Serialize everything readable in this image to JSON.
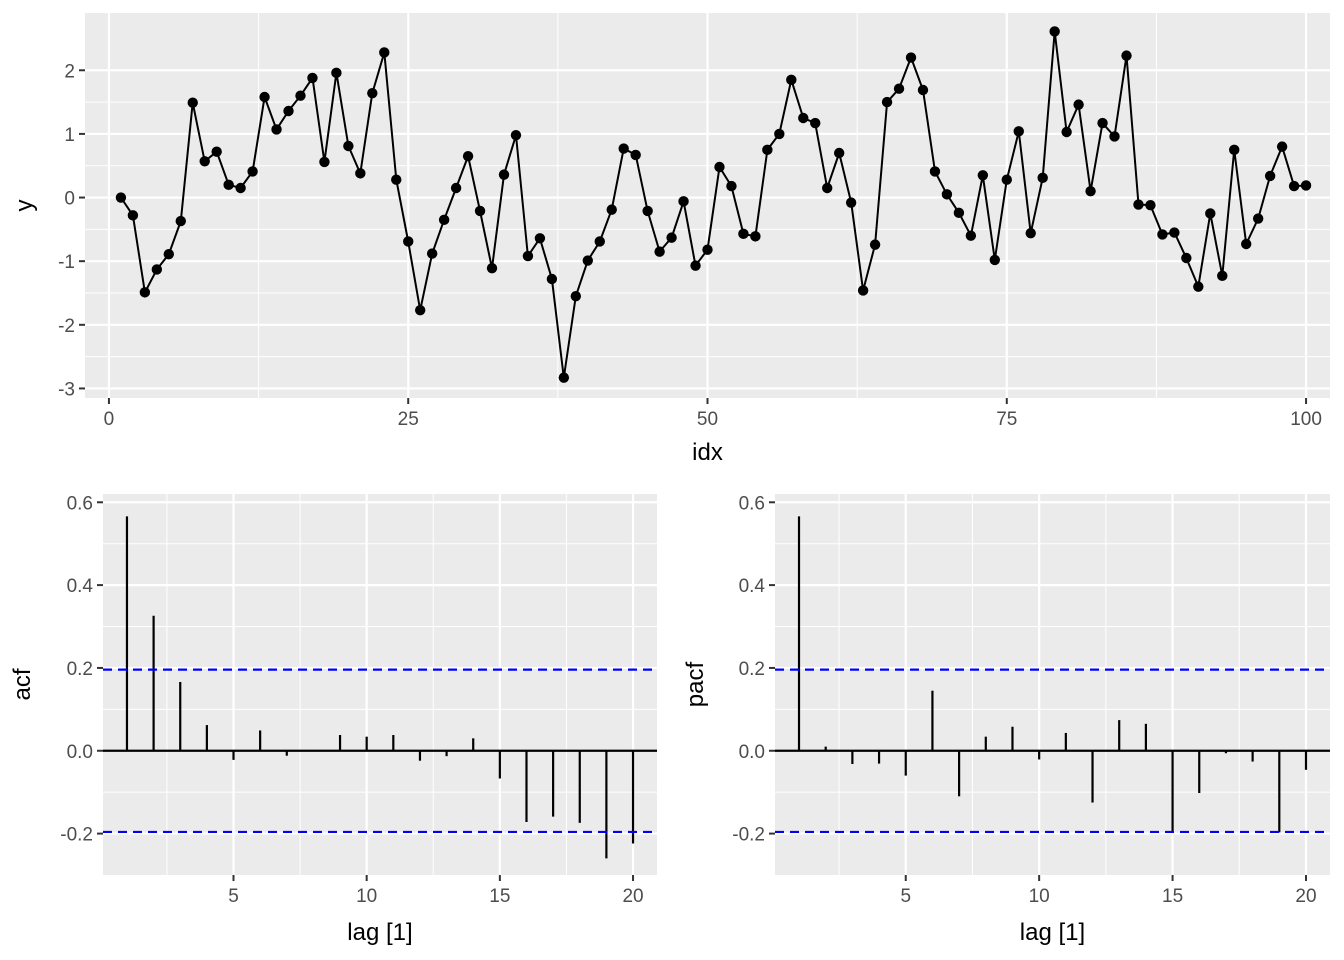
{
  "chart_data": [
    {
      "type": "line",
      "xlabel": "idx",
      "ylabel": "y",
      "xlim": [
        -2,
        102
      ],
      "ylim": [
        -3.15,
        2.9
      ],
      "xticks": [
        0,
        25,
        50,
        75,
        100
      ],
      "yticks": [
        -3,
        -2,
        -1,
        0,
        1,
        2
      ],
      "grid": true,
      "markers": true,
      "colors": {
        "line": "#000000",
        "panel": "#ebebeb",
        "grid": "#ffffff"
      },
      "x": [
        1,
        2,
        3,
        4,
        5,
        6,
        7,
        8,
        9,
        10,
        11,
        12,
        13,
        14,
        15,
        16,
        17,
        18,
        19,
        20,
        21,
        22,
        23,
        24,
        25,
        26,
        27,
        28,
        29,
        30,
        31,
        32,
        33,
        34,
        35,
        36,
        37,
        38,
        39,
        40,
        41,
        42,
        43,
        44,
        45,
        46,
        47,
        48,
        49,
        50,
        51,
        52,
        53,
        54,
        55,
        56,
        57,
        58,
        59,
        60,
        61,
        62,
        63,
        64,
        65,
        66,
        67,
        68,
        69,
        70,
        71,
        72,
        73,
        74,
        75,
        76,
        77,
        78,
        79,
        80,
        81,
        82,
        83,
        84,
        85,
        86,
        87,
        88,
        89,
        90,
        91,
        92,
        93,
        94,
        95,
        96,
        97,
        98,
        99,
        100
      ],
      "y": [
        0.0,
        -0.28,
        -1.49,
        -1.13,
        -0.89,
        -0.37,
        1.49,
        0.57,
        0.72,
        0.2,
        0.15,
        0.41,
        1.58,
        1.07,
        1.36,
        1.6,
        1.88,
        0.56,
        1.96,
        0.81,
        0.38,
        1.64,
        2.28,
        0.28,
        -0.69,
        -1.77,
        -0.88,
        -0.35,
        0.15,
        0.65,
        -0.21,
        -1.11,
        0.36,
        0.98,
        -0.92,
        -0.64,
        -1.28,
        -2.83,
        -1.55,
        -0.99,
        -0.69,
        -0.19,
        0.77,
        0.67,
        -0.21,
        -0.85,
        -0.63,
        -0.06,
        -1.07,
        -0.82,
        0.48,
        0.18,
        -0.57,
        -0.61,
        0.75,
        1.0,
        1.85,
        1.25,
        1.17,
        0.15,
        0.7,
        -0.08,
        -1.46,
        -0.74,
        1.5,
        1.71,
        2.2,
        1.69,
        0.41,
        0.05,
        -0.24,
        -0.6,
        0.35,
        -0.98,
        0.28,
        1.04,
        -0.56,
        0.31,
        2.61,
        1.03,
        1.46,
        0.1,
        1.17,
        0.96,
        2.23,
        -0.11,
        -0.12,
        -0.58,
        -0.55,
        -0.95,
        -1.4,
        -0.25,
        -1.23,
        0.75,
        -0.73,
        -0.33,
        0.34,
        0.8,
        0.18,
        0.19
      ]
    },
    {
      "type": "bar",
      "xlabel": "lag [1]",
      "ylabel": "acf",
      "xlim": [
        0.1,
        20.9
      ],
      "ylim": [
        -0.3,
        0.62
      ],
      "xticks": [
        5,
        10,
        15,
        20
      ],
      "yticks": [
        -0.2,
        0.0,
        0.2,
        0.4,
        0.6
      ],
      "significance_bounds": [
        0.196,
        -0.196
      ],
      "colors": {
        "bars": "#000000",
        "bounds": "#0000ff",
        "panel": "#ebebeb",
        "grid": "#ffffff"
      },
      "x": [
        1,
        2,
        3,
        4,
        5,
        6,
        7,
        8,
        9,
        10,
        11,
        12,
        13,
        14,
        15,
        16,
        17,
        18,
        19,
        20
      ],
      "values": [
        0.566,
        0.326,
        0.166,
        0.062,
        -0.022,
        0.049,
        -0.012,
        0.002,
        0.038,
        0.034,
        0.038,
        -0.024,
        -0.013,
        0.03,
        -0.067,
        -0.172,
        -0.159,
        -0.174,
        -0.26,
        -0.224
      ]
    },
    {
      "type": "bar",
      "xlabel": "lag [1]",
      "ylabel": "pacf",
      "xlim": [
        0.1,
        20.9
      ],
      "ylim": [
        -0.3,
        0.62
      ],
      "xticks": [
        5,
        10,
        15,
        20
      ],
      "yticks": [
        -0.2,
        0.0,
        0.2,
        0.4,
        0.6
      ],
      "significance_bounds": [
        0.196,
        -0.196
      ],
      "colors": {
        "bars": "#000000",
        "bounds": "#0000ff",
        "panel": "#ebebeb",
        "grid": "#ffffff"
      },
      "x": [
        1,
        2,
        3,
        4,
        5,
        6,
        7,
        8,
        9,
        10,
        11,
        12,
        13,
        14,
        15,
        16,
        17,
        18,
        19,
        20
      ],
      "values": [
        0.566,
        0.01,
        -0.032,
        -0.031,
        -0.06,
        0.145,
        -0.11,
        0.034,
        0.058,
        -0.021,
        0.043,
        -0.125,
        0.074,
        0.065,
        -0.197,
        -0.102,
        -0.006,
        -0.026,
        -0.197,
        -0.046
      ]
    }
  ]
}
